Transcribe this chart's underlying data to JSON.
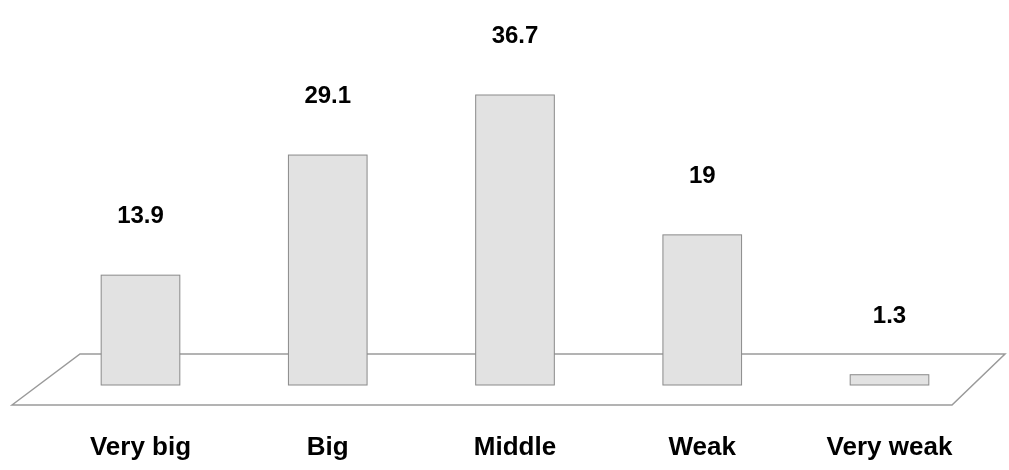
{
  "chart_data": {
    "type": "bar",
    "categories": [
      "Very big",
      "Big",
      "Middle",
      "Weak",
      "Very weak"
    ],
    "values": [
      13.9,
      29.1,
      36.7,
      19,
      1.3
    ],
    "color": "#e2e2e2",
    "data_labels": true
  }
}
